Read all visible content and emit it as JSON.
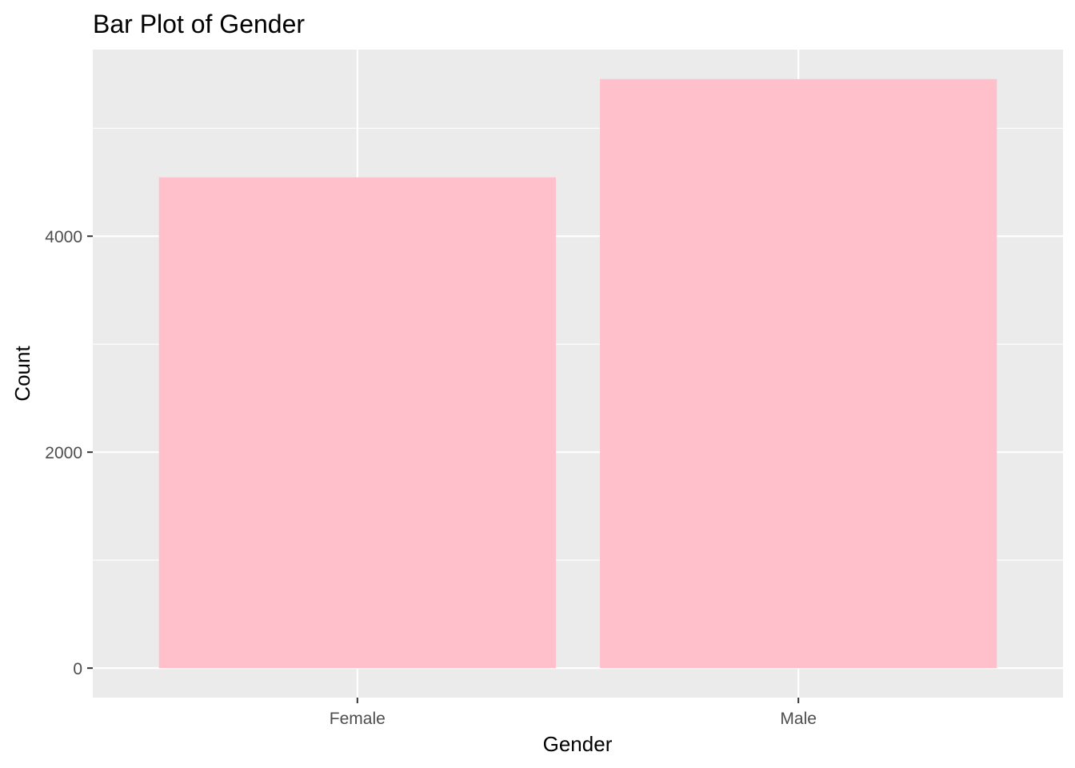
{
  "chart_data": {
    "type": "bar",
    "title": "Bar Plot of Gender",
    "xlabel": "Gender",
    "ylabel": "Count",
    "categories": [
      "Female",
      "Male"
    ],
    "values": [
      4545,
      5455
    ],
    "ylim": [
      -273,
      5728
    ],
    "yticks": [
      0,
      2000,
      4000
    ],
    "yticks_labels": [
      "0",
      "2000",
      "4000"
    ],
    "y_minor_gridlines": [
      1000,
      3000,
      5000
    ],
    "grid": true,
    "legend": "none",
    "colors": {
      "bar_fill": "#FFC0CB",
      "panel_background": "#EBEBEB",
      "gridline": "#FFFFFF",
      "tick_text": "#4D4D4D",
      "text": "#000000"
    }
  }
}
